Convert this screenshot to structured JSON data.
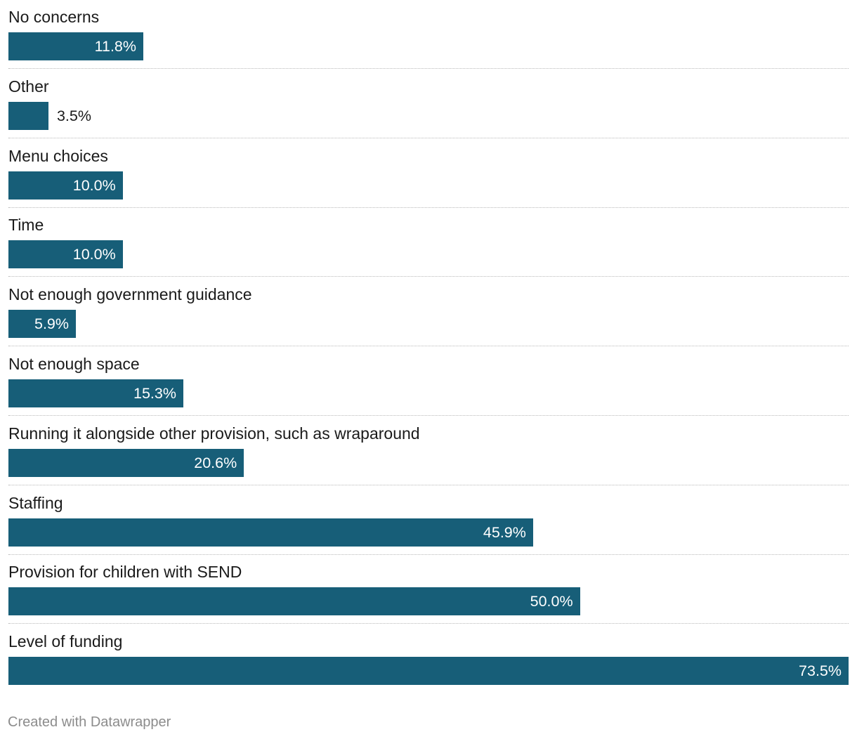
{
  "chart_data": {
    "type": "bar",
    "orientation": "horizontal",
    "categories": [
      "No concerns",
      "Other",
      "Menu choices",
      "Time",
      "Not enough government guidance",
      "Not enough space",
      "Running it alongside other provision, such as wraparound",
      "Staffing",
      "Provision for children with SEND",
      "Level of funding"
    ],
    "values": [
      11.8,
      3.5,
      10.0,
      10.0,
      5.9,
      15.3,
      20.6,
      45.9,
      50.0,
      73.5
    ],
    "value_labels": [
      "11.8%",
      "3.5%",
      "10.0%",
      "10.0%",
      "5.9%",
      "15.3%",
      "20.6%",
      "45.9%",
      "50.0%",
      "73.5%"
    ],
    "xlim": [
      0,
      73.5
    ],
    "grid": false,
    "bar_color": "#175e78"
  },
  "footer": {
    "credit": "Created with Datawrapper"
  }
}
